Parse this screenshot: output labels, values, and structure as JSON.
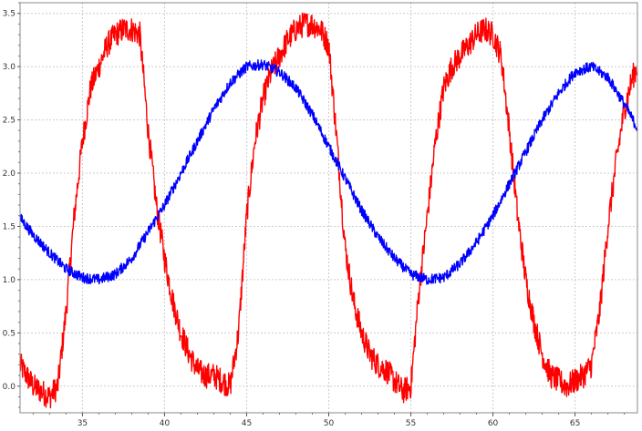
{
  "chart_data": {
    "type": "line",
    "title": "",
    "xlabel": "",
    "ylabel": "",
    "xlim": [
      31.2,
      68.8
    ],
    "ylim": [
      -0.25,
      3.6
    ],
    "xticks": [
      35,
      40,
      45,
      50,
      55,
      60,
      65
    ],
    "xtick_labels": [
      "35",
      "40",
      "45",
      "50",
      "55",
      "60",
      "65"
    ],
    "yticks": [
      0.0,
      0.5,
      1.0,
      1.5,
      2.0,
      2.5,
      3.0,
      3.5
    ],
    "ytick_labels": [
      "0.0",
      "0.5",
      "1.0",
      "1.5",
      "2.0",
      "2.5",
      "3.0",
      "3.5"
    ],
    "grid": true,
    "legend": "none",
    "series": [
      {
        "color": "#ff0000",
        "x": [
          31.2,
          32,
          33,
          33.5,
          34,
          34.5,
          35,
          35.5,
          36,
          36.5,
          37,
          37.5,
          38,
          38.5,
          39,
          39.5,
          40,
          40.5,
          41,
          41.5,
          42,
          42.5,
          43,
          43.5,
          44,
          44.5,
          45,
          45.5,
          46,
          46.5,
          47,
          47.5,
          48,
          48.5,
          49,
          49.5,
          50,
          50.5,
          51,
          51.5,
          52,
          52.5,
          53,
          53.5,
          54,
          54.5,
          55,
          55.5,
          56,
          56.5,
          57,
          57.5,
          58,
          58.5,
          59,
          59.5,
          60,
          60.5,
          61,
          61.5,
          62,
          62.5,
          63,
          63.5,
          64,
          64.5,
          65,
          65.5,
          66,
          66.5,
          67,
          67.5,
          68,
          68.5,
          68.8
        ],
        "y": [
          0.2,
          0.0,
          -0.1,
          0.0,
          0.7,
          1.6,
          2.3,
          2.8,
          3.0,
          3.2,
          3.3,
          3.35,
          3.35,
          3.3,
          2.4,
          1.7,
          1.2,
          0.8,
          0.5,
          0.3,
          0.15,
          0.1,
          0.1,
          0.05,
          0.0,
          0.5,
          1.6,
          2.3,
          2.7,
          2.95,
          3.1,
          3.25,
          3.35,
          3.4,
          3.4,
          3.35,
          3.2,
          2.3,
          1.3,
          0.8,
          0.5,
          0.3,
          0.2,
          0.15,
          0.05,
          -0.05,
          0.0,
          0.9,
          1.6,
          2.3,
          2.8,
          3.0,
          3.1,
          3.2,
          3.3,
          3.35,
          3.3,
          3.1,
          2.4,
          1.6,
          1.0,
          0.6,
          0.3,
          0.1,
          0.05,
          0.0,
          0.05,
          0.1,
          0.2,
          0.7,
          1.5,
          2.1,
          2.6,
          2.9,
          3.0
        ],
        "noise": 0.12
      },
      {
        "color": "#0000ff",
        "x": [
          31.2,
          32,
          33,
          34,
          35,
          36,
          37,
          38,
          39,
          40,
          41,
          42,
          43,
          44,
          45,
          46,
          47,
          48,
          49,
          50,
          51,
          52,
          53,
          54,
          55,
          56,
          57,
          58,
          59,
          60,
          61,
          62,
          63,
          64,
          65,
          66,
          67,
          68,
          68.8
        ],
        "y": [
          1.58,
          1.42,
          1.25,
          1.1,
          1.02,
          1.0,
          1.05,
          1.2,
          1.45,
          1.7,
          2.0,
          2.3,
          2.6,
          2.85,
          3.0,
          3.02,
          2.95,
          2.8,
          2.55,
          2.25,
          1.95,
          1.65,
          1.4,
          1.2,
          1.05,
          1.0,
          1.02,
          1.15,
          1.35,
          1.6,
          1.9,
          2.2,
          2.5,
          2.75,
          2.95,
          3.0,
          2.9,
          2.65,
          2.42
        ],
        "noise": 0.05
      }
    ]
  }
}
